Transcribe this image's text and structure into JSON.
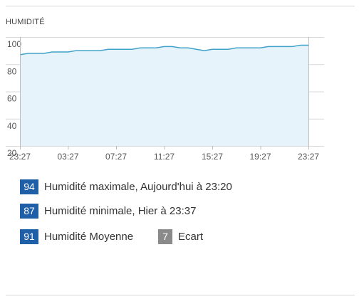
{
  "chart_data": {
    "type": "area",
    "title": "HUMIDITÉ",
    "ylim": [
      20,
      100
    ],
    "y_ticks": [
      "100",
      "80",
      "60",
      "40",
      "20"
    ],
    "x_ticks": [
      "23:27",
      "03:27",
      "07:27",
      "11:27",
      "15:27",
      "19:27",
      "23:27"
    ],
    "series": [
      {
        "values": [
          87,
          88,
          88,
          88,
          89,
          89,
          89,
          90,
          90,
          90,
          90,
          91,
          91,
          91,
          91,
          92,
          92,
          92,
          93,
          93,
          92,
          92,
          91,
          90,
          91,
          91,
          91,
          92,
          92,
          92,
          92,
          93,
          93,
          93,
          93,
          94,
          94
        ]
      }
    ],
    "line_color": "#3fa3c9",
    "fill_color": "#e6f3fa",
    "grid": true
  },
  "stats": {
    "max": {
      "value": "94",
      "label": "Humidité maximale, Aujourd'hui à 23:20"
    },
    "min": {
      "value": "87",
      "label": "Humidité minimale, Hier à 23:37"
    },
    "avg": {
      "value": "91",
      "label": "Humidité Moyenne"
    },
    "range": {
      "value": "7",
      "label": "Ecart"
    }
  }
}
